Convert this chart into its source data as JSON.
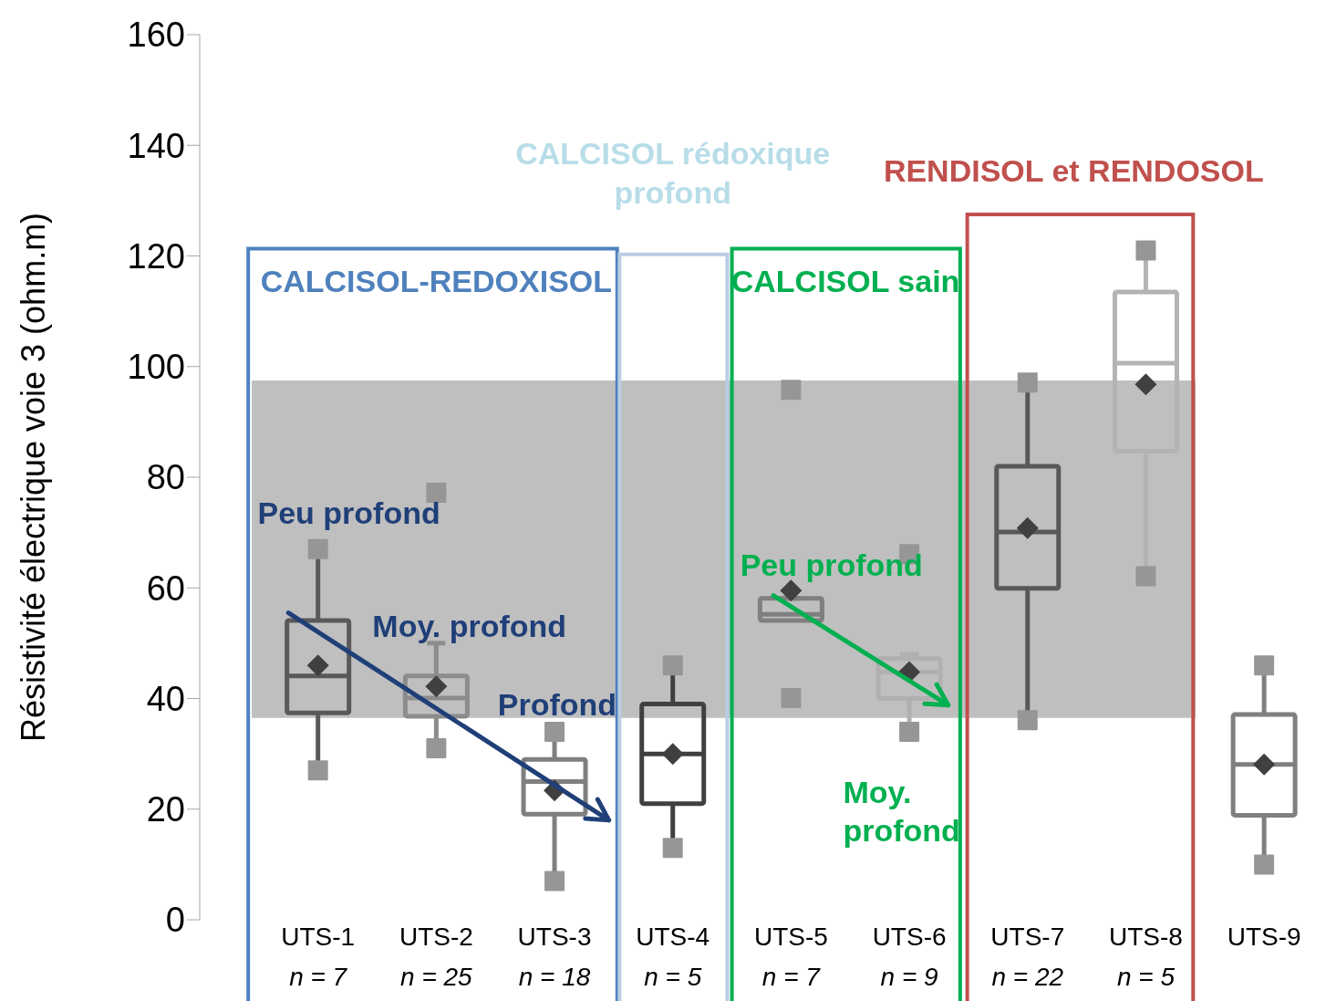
{
  "chart_data": {
    "type": "box",
    "ylabel": "Résistivité électrique voie 3 (ohm.m)",
    "categories": [
      "UTS-1",
      "UTS-2",
      "UTS-3",
      "UTS-4",
      "UTS-5",
      "UTS-6",
      "UTS-7",
      "UTS-8",
      "UTS-9"
    ],
    "colors": [
      "#595959",
      "#8c8c8c",
      "#7f7f7f",
      "#404040",
      "#7f7f7f",
      "#b0b0b0",
      "#595959",
      "#b3b3b3",
      "#7f7f7f"
    ],
    "boxes": [
      {
        "low": 27,
        "q1": 37.4,
        "median": 44.1,
        "q3": 54.1,
        "high": 67,
        "mean": 46,
        "outliers": [
          27,
          67
        ]
      },
      {
        "low": 31,
        "q1": 36.8,
        "median": 40.1,
        "q3": 44.1,
        "high": 50,
        "mean": 42.2,
        "outliers": [
          31,
          77.2
        ]
      },
      {
        "low": 7,
        "q1": 19.1,
        "median": 25,
        "q3": 29,
        "high": 34,
        "mean": 23.4,
        "outliers": [
          7,
          34
        ]
      },
      {
        "low": 13,
        "q1": 21,
        "median": 30,
        "q3": 39,
        "high": 46,
        "mean": 30,
        "outliers": [
          13,
          46
        ]
      },
      {
        "low": 54.1,
        "q1": 54.1,
        "median": 55.2,
        "q3": 58.1,
        "high": 58.1,
        "mean": 59.5,
        "outliers": [
          40.1,
          95.8
        ]
      },
      {
        "low": 34,
        "q1": 40,
        "median": 44.8,
        "q3": 47.2,
        "high": 48,
        "mean": 44.8,
        "outliers": [
          34,
          66.1
        ]
      },
      {
        "low": 36.1,
        "q1": 59.9,
        "median": 70.1,
        "q3": 82,
        "high": 97.1,
        "mean": 70.8,
        "outliers": [
          36.1,
          97.1
        ]
      },
      {
        "low": 62.1,
        "q1": 84.7,
        "median": 100.6,
        "q3": 113.5,
        "high": 121,
        "mean": 96.8,
        "outliers": [
          62.1,
          121
        ]
      },
      {
        "low": 10,
        "q1": 18.9,
        "median": 28.1,
        "q3": 37.1,
        "high": 46,
        "mean": 28.1,
        "outliers": [
          10,
          46
        ]
      }
    ],
    "ylim": [
      0,
      160
    ],
    "yticks": [
      0,
      20,
      40,
      60,
      80,
      100,
      120,
      140,
      160
    ],
    "bands": [
      {
        "axis": "y",
        "from": 36.5,
        "to": 97.5,
        "color": "#bfbfbf"
      }
    ],
    "annotations": [
      "CALCISOL-REDOXISOL",
      "CALCISOL rédoxique profond",
      "CALCISOL sain",
      "RENDISOL et RENDOSOL",
      "Peu profond",
      "Moy. profond",
      "Profond",
      "Peu profond",
      "Moy. profond",
      "n = 7",
      "n = 25",
      "n = 18",
      "n = 5",
      "n = 7",
      "n = 9",
      "n = 22",
      "n = 5"
    ]
  }
}
